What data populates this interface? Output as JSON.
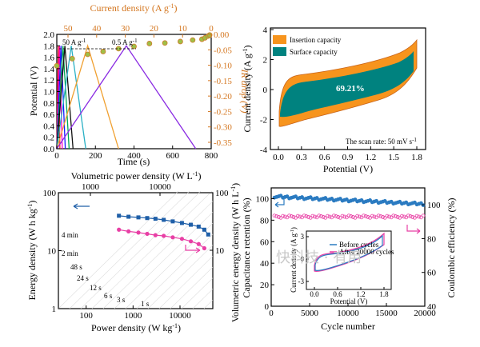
{
  "chart_data": [
    {
      "type": "line",
      "panel": "top-left",
      "xlabel": "Time (s)",
      "ylabel": "Potential (V)",
      "xlim": [
        0,
        800
      ],
      "ylim": [
        0,
        2.0
      ],
      "xticks": [
        "0",
        "200",
        "400",
        "600",
        "800"
      ],
      "yticks": [
        "0.0",
        "0.2",
        "0.4",
        "0.6",
        "0.8",
        "1.0",
        "1.2",
        "1.4",
        "1.6",
        "1.8",
        "2.0"
      ],
      "top_axis_label": "Current density (A g",
      "top_axis_sup": "-1",
      "top_axis_label_end": ")",
      "top_xlim": [
        50,
        0
      ],
      "top_ticks": [
        "50",
        "40",
        "30",
        "20",
        "10",
        "0"
      ],
      "right_axis_label": "IR drop (V)",
      "right_ylim": [
        0,
        -0.4
      ],
      "right_ticks": [
        "0.00",
        "-0.05",
        "-0.10",
        "-0.15",
        "-0.20",
        "-0.25",
        "-0.30",
        "-0.35"
      ],
      "annotations": [
        "50 A g",
        "0.5 A g"
      ],
      "annotation_sup": "-1",
      "series": [
        {
          "color": "#ff2a2a",
          "x": [
            0,
            8,
            16
          ]
        },
        {
          "color": "#ff00cc",
          "x": [
            0,
            14,
            28
          ]
        },
        {
          "color": "#1a1aff",
          "x": [
            0,
            22,
            44
          ]
        },
        {
          "color": "#00a651",
          "x": [
            0,
            32,
            64
          ]
        },
        {
          "color": "#111111",
          "x": [
            0,
            42,
            84
          ]
        },
        {
          "color": "#2ab0c5",
          "x": [
            0,
            75,
            150
          ]
        },
        {
          "color": "#f0a030",
          "x": [
            0,
            160,
            320
          ]
        },
        {
          "color": "#8a2be2",
          "x": [
            0,
            360,
            720
          ]
        }
      ],
      "series_peak_y": 1.8,
      "ir_drop": {
        "current": [
          50,
          45,
          40,
          35,
          30,
          25,
          20,
          15,
          10,
          6,
          3,
          2,
          1,
          0.5
        ],
        "value": [
          -0.11,
          -0.085,
          -0.07,
          -0.06,
          -0.05,
          -0.042,
          -0.032,
          -0.03,
          -0.025,
          -0.02,
          -0.017,
          -0.012,
          -0.006,
          -0.002
        ]
      }
    },
    {
      "type": "area",
      "panel": "top-right",
      "xlabel": "Potential (V)",
      "ylabel": "Current density (A g",
      "ylabel_sup": "-1",
      "ylabel_end": ")",
      "xlim": [
        0,
        1.8
      ],
      "ylim": [
        -4,
        4
      ],
      "xticks": [
        "0.0",
        "0.3",
        "0.6",
        "0.9",
        "1.2",
        "1.5",
        "1.8"
      ],
      "yticks": [
        "-4",
        "-2",
        "0",
        "2",
        "4"
      ],
      "legend": [
        "Insertion capacity",
        "Surface capacity"
      ],
      "colors": {
        "insertion": "#f7941d",
        "surface": "#00827f"
      },
      "center_label": "69.21%",
      "note": "The scan rate: 50 mV s",
      "note_sup": "-1"
    },
    {
      "type": "line",
      "panel": "bottom-left",
      "xlabel": "Power density (W kg",
      "xlabel_sup": "-1",
      "xlabel_end": ")",
      "ylabel": "Energy density (W h kg",
      "ylabel_sup": "-1",
      "ylabel_end": ")",
      "top_axis_label": "Volumetric power density (W L",
      "top_axis_sup": "-1",
      "top_axis_label_end": ")",
      "right_axis_label": "Volumetric energy density (W h L",
      "right_axis_sup": "-1",
      "right_axis_end": ")",
      "xlim": [
        10,
        100000
      ],
      "ylim": [
        1,
        100
      ],
      "xscale": "log",
      "yscale": "log",
      "xticks": [
        "100",
        "1000",
        "10000"
      ],
      "yticks": [
        "1",
        "10",
        "100"
      ],
      "top_ticks": [
        "1000",
        "10000"
      ],
      "right_ticks": [
        "10",
        "100"
      ],
      "time_labels": [
        "4 min",
        "2 min",
        "48 s",
        "24 s",
        "12 s",
        "6 s",
        "3 s",
        "1 s"
      ],
      "series": [
        {
          "name": "gravimetric",
          "color": "#1f5fa8",
          "marker": "square",
          "x": [
            500,
            800,
            1300,
            2000,
            3000,
            4500,
            7000,
            11000,
            17000,
            25000,
            33000,
            40000
          ],
          "y": [
            40,
            38.5,
            37.5,
            36.5,
            35.5,
            34,
            32,
            30,
            28,
            26,
            23,
            19
          ]
        },
        {
          "name": "volumetric",
          "color": "#e83fa5",
          "marker": "circle",
          "x": [
            500,
            800,
            1300,
            2000,
            3000,
            4500,
            7000,
            11000,
            17000,
            25000,
            33000
          ],
          "y": [
            23,
            21.5,
            20.5,
            19.5,
            18.5,
            18,
            17,
            16,
            14.5,
            13,
            11
          ]
        }
      ]
    },
    {
      "type": "scatter",
      "panel": "bottom-right",
      "xlabel": "Cycle number",
      "ylabel": "Capacitance retention (%)",
      "right_axis_label": "Coulombic efficiency (%)",
      "xlim": [
        0,
        20000
      ],
      "ylim": [
        0,
        110
      ],
      "right_ylim": [
        40,
        110
      ],
      "xticks": [
        "0",
        "5000",
        "10000",
        "15000",
        "20000"
      ],
      "yticks": [
        "0",
        "20",
        "40",
        "60",
        "80",
        "100"
      ],
      "right_ticks": [
        "40",
        "60",
        "80",
        "100"
      ],
      "series": [
        {
          "name": "retention",
          "color": "#2b7bc1",
          "from": 102,
          "to": 95
        },
        {
          "name": "efficiency",
          "color": "#e83fa5",
          "from": 82,
          "to": 83
        }
      ],
      "inset": {
        "xlabel": "Potential (V)",
        "ylabel": "Current density (A g",
        "ylabel_sup": "-1",
        "ylabel_end": ")",
        "xticks": [
          "0.0",
          "0.6",
          "1.2",
          "1.8"
        ],
        "yticks": [
          "-3",
          "0",
          "3"
        ],
        "legend": [
          "Before cycles",
          "After 20000 cycles"
        ],
        "colors": [
          "#2b7bc1",
          "#e83fa5"
        ]
      }
    }
  ],
  "watermark": "快科技 · 有用"
}
